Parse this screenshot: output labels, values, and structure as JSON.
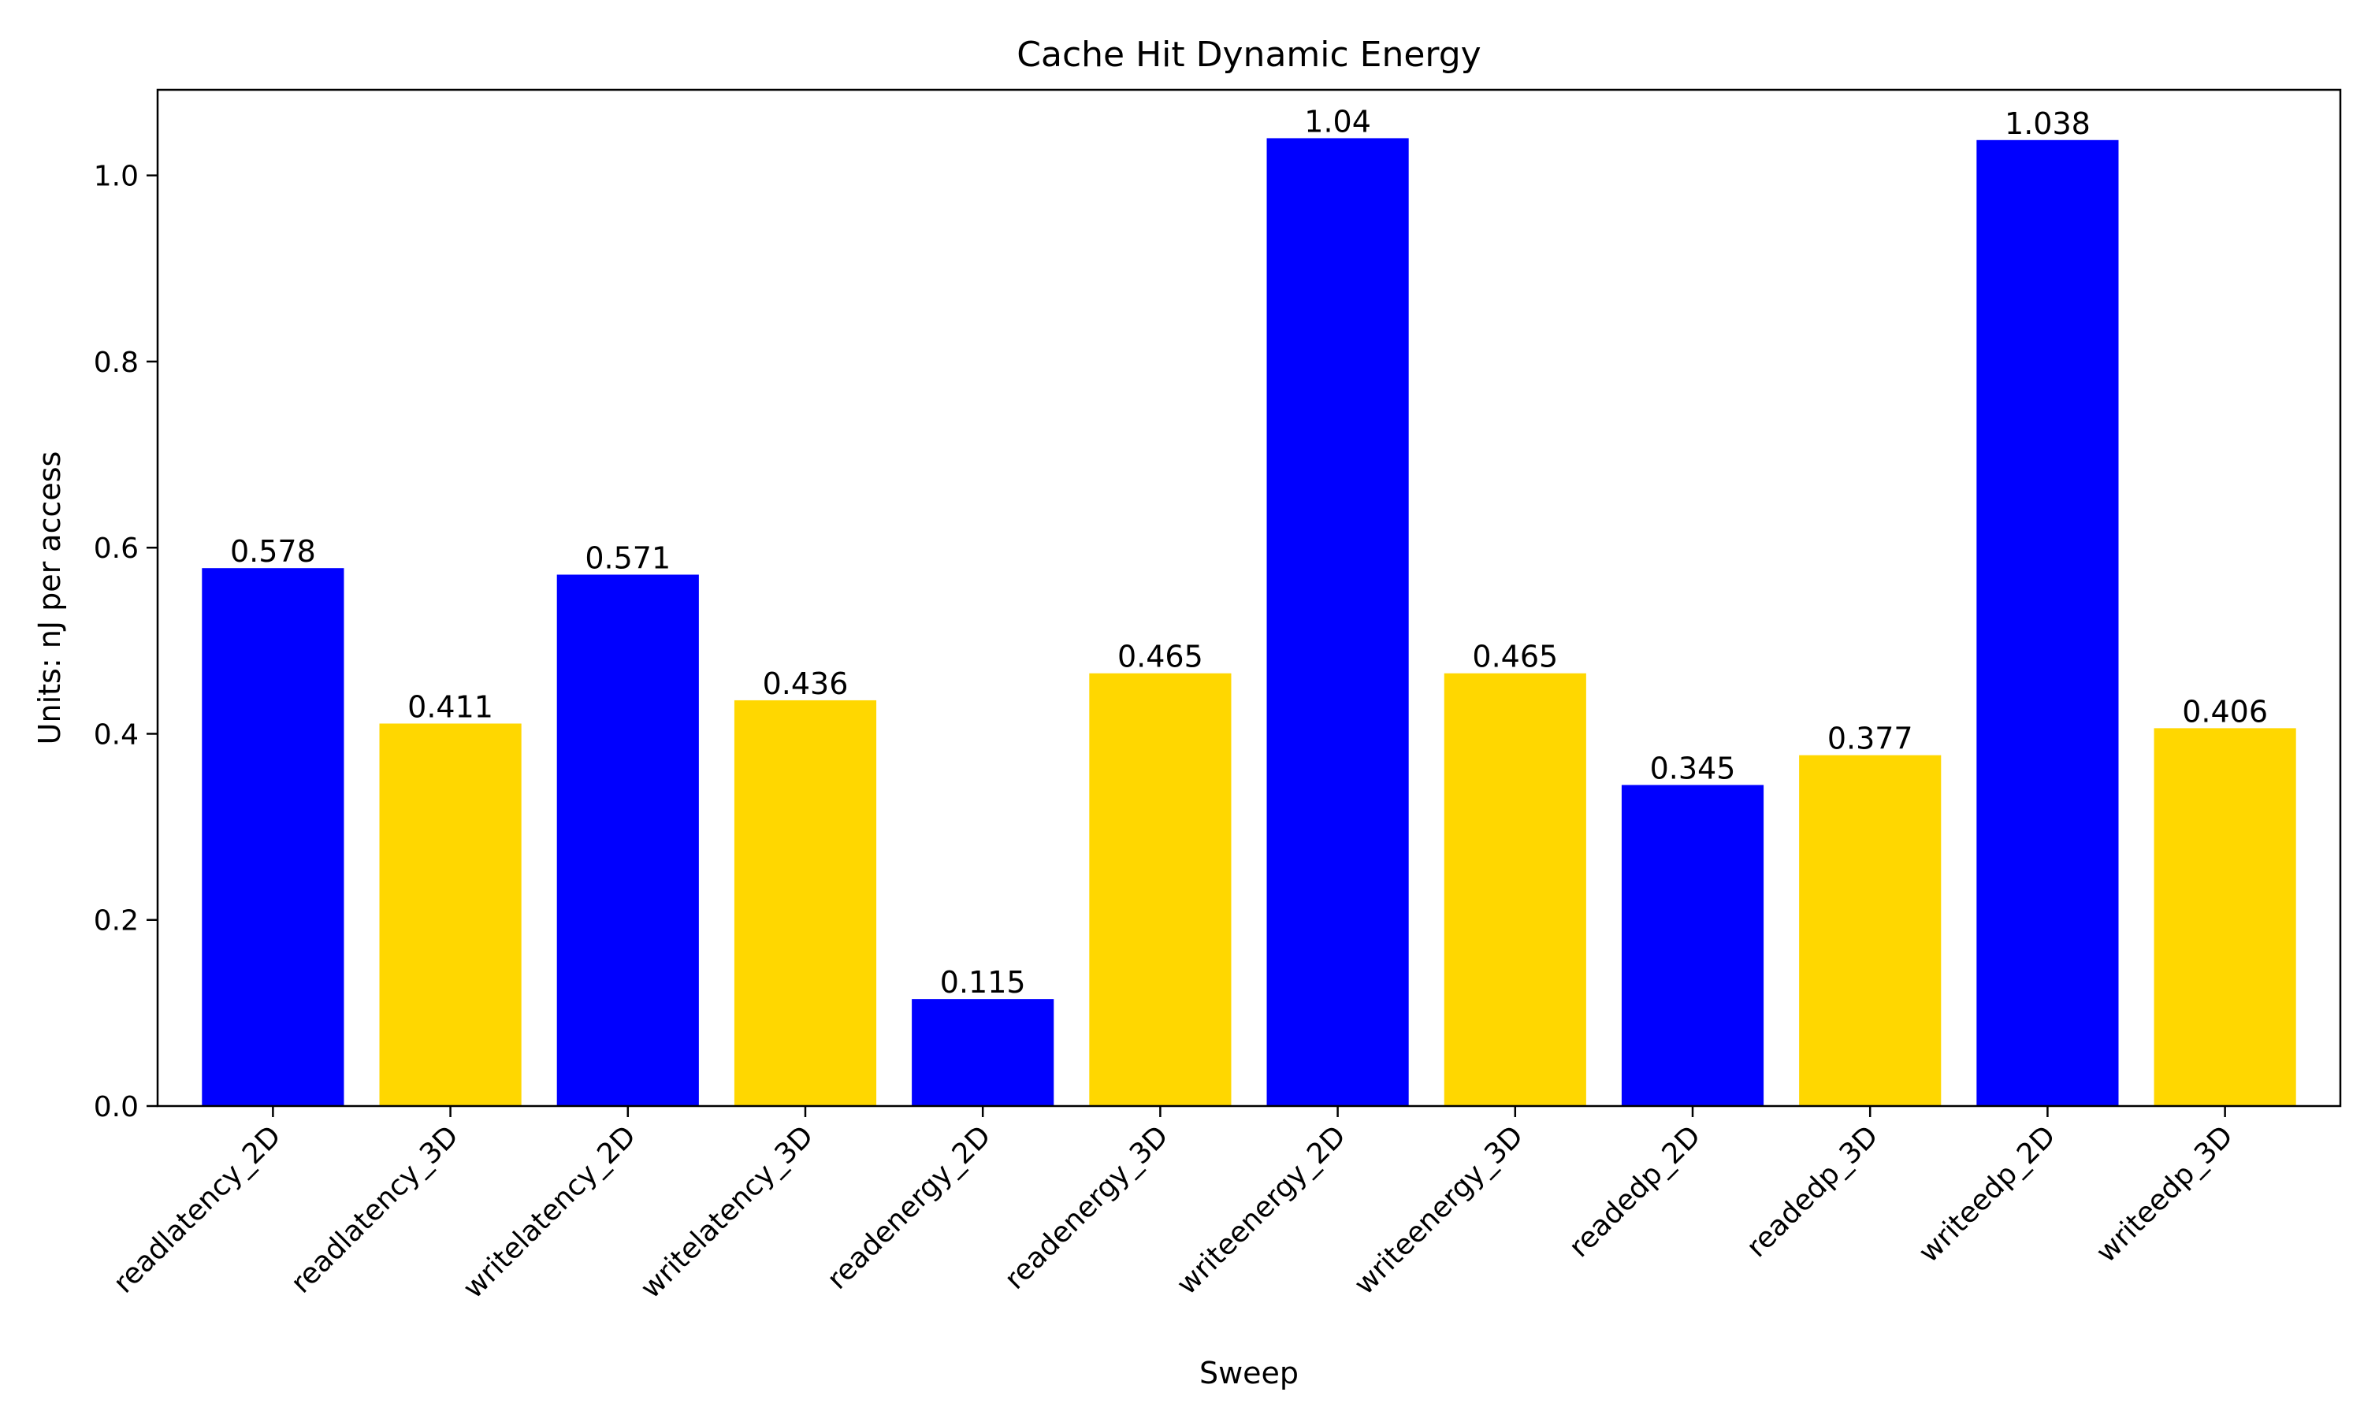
{
  "chart_data": {
    "type": "bar",
    "title": "Cache Hit Dynamic Energy",
    "xlabel": "Sweep",
    "ylabel": "Units: nJ per access",
    "categories": [
      "readlatency_2D",
      "readlatency_3D",
      "writelatency_2D",
      "writelatency_3D",
      "readenergy_2D",
      "readenergy_3D",
      "writeenergy_2D",
      "writeenergy_3D",
      "readedp_2D",
      "readedp_3D",
      "writeedp_2D",
      "writeedp_3D"
    ],
    "values": [
      0.578,
      0.411,
      0.571,
      0.436,
      0.115,
      0.465,
      1.04,
      0.465,
      0.345,
      0.377,
      1.038,
      0.406
    ],
    "data_labels": [
      "0.578",
      "0.411",
      "0.571",
      "0.436",
      "0.115",
      "0.465",
      "1.04",
      "0.465",
      "0.345",
      "0.377",
      "1.038",
      "0.406"
    ],
    "bar_colors": [
      "#0000ff",
      "#ffd700",
      "#0000ff",
      "#ffd700",
      "#0000ff",
      "#ffd700",
      "#0000ff",
      "#ffd700",
      "#0000ff",
      "#ffd700",
      "#0000ff",
      "#ffd700"
    ],
    "ylim": [
      0,
      1.092
    ],
    "yticks": [
      0.0,
      0.2,
      0.4,
      0.6,
      0.8,
      1.0
    ],
    "ytick_labels": [
      "0.0",
      "0.2",
      "0.4",
      "0.6",
      "0.8",
      "1.0"
    ],
    "grid": false,
    "legend": "none"
  }
}
